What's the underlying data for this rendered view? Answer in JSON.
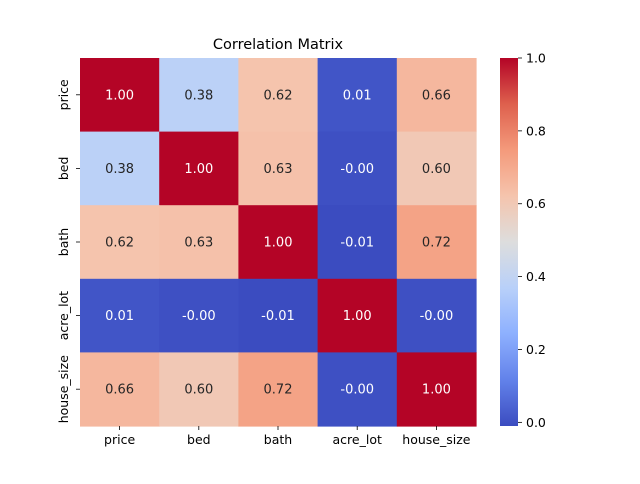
{
  "chart_data": {
    "type": "heatmap",
    "title": "Correlation Matrix",
    "xlabel": "",
    "ylabel": "",
    "x_categories": [
      "price",
      "bed",
      "bath",
      "acre_lot",
      "house_size"
    ],
    "y_categories": [
      "price",
      "bed",
      "bath",
      "acre_lot",
      "house_size"
    ],
    "value_labels": [
      [
        "1.00",
        "0.38",
        "0.62",
        "0.01",
        "0.66"
      ],
      [
        "0.38",
        "1.00",
        "0.63",
        "-0.00",
        "0.60"
      ],
      [
        "0.62",
        "0.63",
        "1.00",
        "-0.01",
        "0.72"
      ],
      [
        "0.01",
        "-0.00",
        "-0.01",
        "1.00",
        "-0.00"
      ],
      [
        "0.66",
        "0.60",
        "0.72",
        "-0.00",
        "1.00"
      ]
    ],
    "values": [
      [
        1.0,
        0.38,
        0.62,
        0.01,
        0.66
      ],
      [
        0.38,
        1.0,
        0.63,
        -0.0,
        0.6
      ],
      [
        0.62,
        0.63,
        1.0,
        -0.01,
        0.72
      ],
      [
        0.01,
        -0.0,
        -0.01,
        1.0,
        -0.0
      ],
      [
        0.66,
        0.6,
        0.72,
        -0.0,
        1.0
      ]
    ],
    "colormap": "coolwarm",
    "colormap_low": "#3b4cc0",
    "colormap_mid": "#dddddd",
    "colormap_high": "#b40426",
    "vmin": -0.01,
    "vmax": 1.0,
    "colorbar_ticks": [
      0.0,
      0.2,
      0.4,
      0.6,
      0.8,
      1.0
    ],
    "colorbar_tick_labels": [
      "0.0",
      "0.2",
      "0.4",
      "0.6",
      "0.8",
      "1.0"
    ],
    "grid": false,
    "legend": "colorbar-right"
  }
}
